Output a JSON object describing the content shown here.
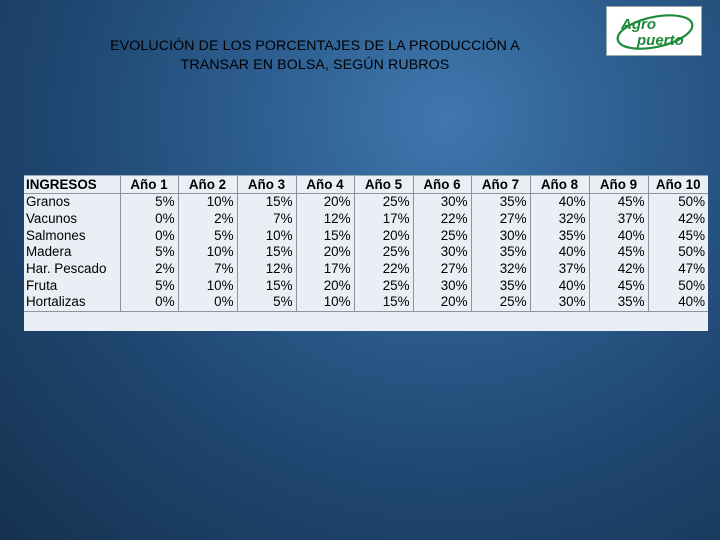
{
  "title": {
    "line1": "EVOLUCIÓN DE LOS PORCENTAJES DE LA PRODUCCIÓN  A",
    "line2": "TRANSAR EN BOLSA, SEGÚN RUBROS"
  },
  "logo": {
    "text_top": "Agro",
    "text_bottom": "puerto",
    "brand_color": "#1f8a3a"
  },
  "colors": {
    "background": "#2d5e8f",
    "table_background": "#e9eff4"
  },
  "table": {
    "headers": [
      "INGRESOS",
      "Año 1",
      "Año 2",
      "Año 3",
      "Año 4",
      "Año 5",
      "Año 6",
      "Año 7",
      "Año 8",
      "Año 9",
      "Año 10"
    ],
    "rows": [
      [
        "Granos",
        "5%",
        "10%",
        "15%",
        "20%",
        "25%",
        "30%",
        "35%",
        "40%",
        "45%",
        "50%"
      ],
      [
        "Vacunos",
        "0%",
        "2%",
        "7%",
        "12%",
        "17%",
        "22%",
        "27%",
        "32%",
        "37%",
        "42%"
      ],
      [
        "Salmones",
        "0%",
        "5%",
        "10%",
        "15%",
        "20%",
        "25%",
        "30%",
        "35%",
        "40%",
        "45%"
      ],
      [
        "Madera",
        "5%",
        "10%",
        "15%",
        "20%",
        "25%",
        "30%",
        "35%",
        "40%",
        "45%",
        "50%"
      ],
      [
        "Har. Pescado",
        "2%",
        "7%",
        "12%",
        "17%",
        "22%",
        "27%",
        "32%",
        "37%",
        "42%",
        "47%"
      ],
      [
        "Fruta",
        "5%",
        "10%",
        "15%",
        "20%",
        "25%",
        "30%",
        "35%",
        "40%",
        "45%",
        "50%"
      ],
      [
        "Hortalizas",
        "0%",
        "0%",
        "5%",
        "10%",
        "15%",
        "20%",
        "25%",
        "30%",
        "35%",
        "40%"
      ]
    ]
  }
}
